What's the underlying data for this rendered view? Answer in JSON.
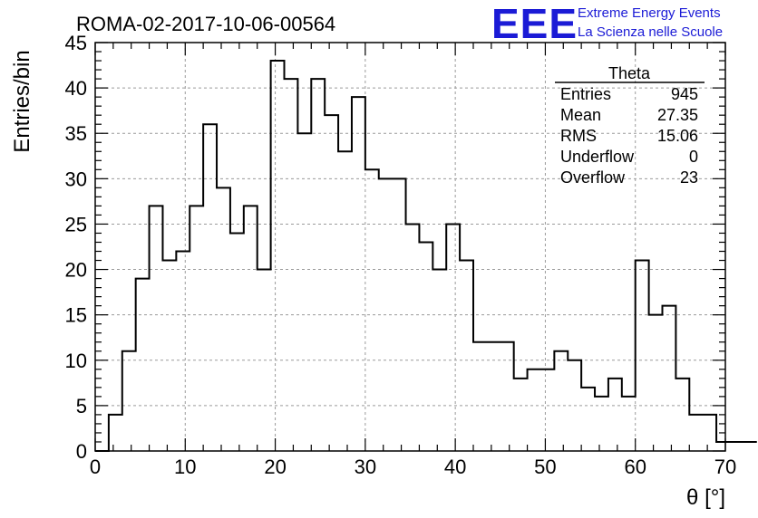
{
  "chart_data": {
    "type": "bar",
    "title": "ROMA-02-2017-10-06-00564",
    "xlabel": "θ [°]",
    "ylabel": "Entries/bin",
    "xlim": [
      0,
      70
    ],
    "ylim": [
      0,
      45
    ],
    "xticks": [
      "0",
      "10",
      "20",
      "30",
      "40",
      "50",
      "60",
      "70"
    ],
    "yticks": [
      "0",
      "5",
      "10",
      "15",
      "20",
      "25",
      "30",
      "35",
      "40",
      "45"
    ],
    "grid": true,
    "bin_width": 1.5,
    "bins_start": 0,
    "values": [
      0,
      4,
      11,
      19,
      27,
      21,
      22,
      27,
      36,
      29,
      24,
      27,
      20,
      43,
      41,
      35,
      41,
      37,
      33,
      39,
      31,
      30,
      30,
      25,
      23,
      20,
      25,
      21,
      12,
      12,
      12,
      8,
      9,
      9,
      11,
      10,
      7,
      6,
      8,
      6,
      21,
      15,
      16,
      8,
      4,
      4,
      1,
      1,
      1
    ],
    "stats": {
      "name": "Theta",
      "rows": [
        {
          "label": "Entries",
          "value": "945"
        },
        {
          "label": "Mean",
          "value": "27.35"
        },
        {
          "label": "RMS",
          "value": "15.06"
        },
        {
          "label": "Underflow",
          "value": "0"
        },
        {
          "label": "Overflow",
          "value": "23"
        }
      ]
    },
    "legend_position": "top-right"
  },
  "logo": {
    "mark": "EEE",
    "line1": "Extreme Energy Events",
    "line2": "La Scienza nelle Scuole",
    "color": "#1b1bd6"
  }
}
